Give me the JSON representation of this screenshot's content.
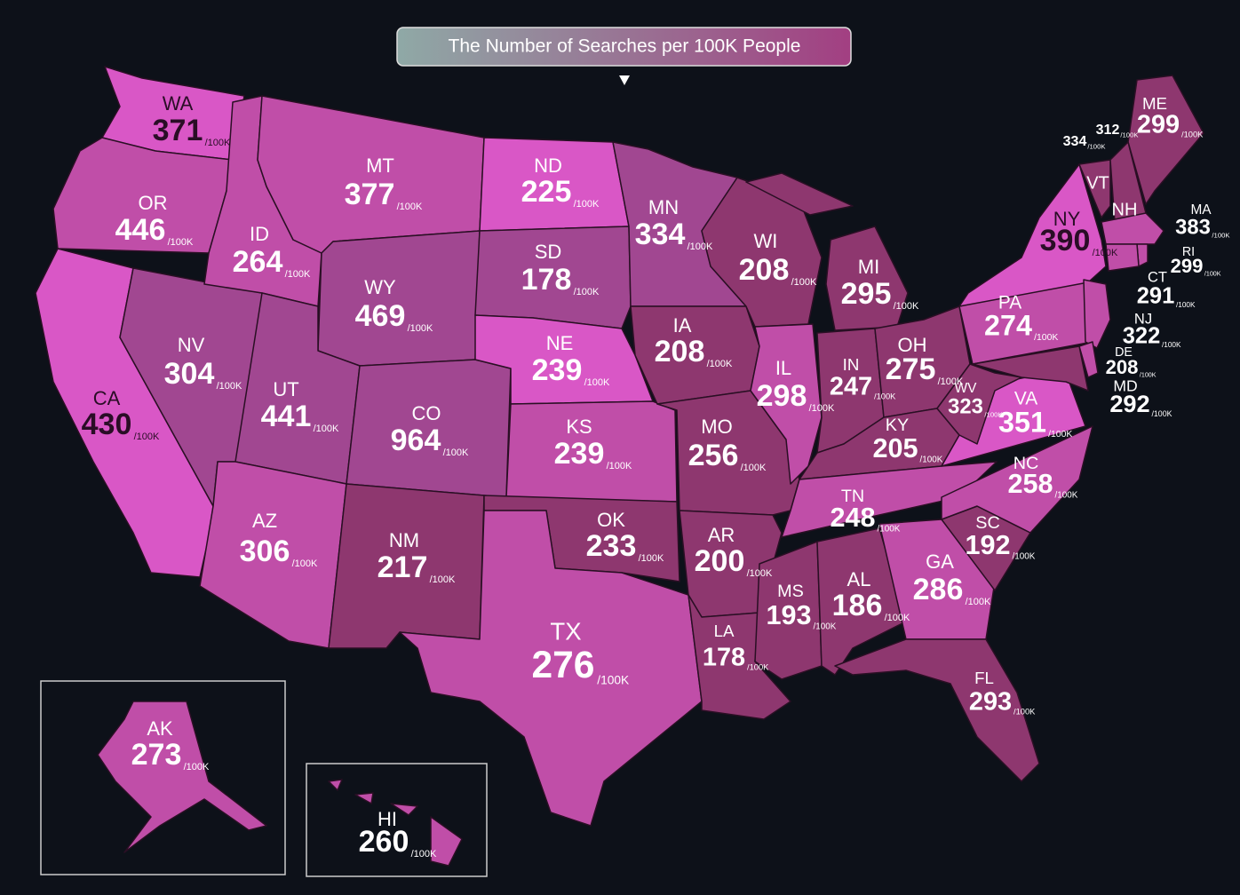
{
  "title": "The Number of Searches per 100K People",
  "unit": "/100K",
  "states": [
    {
      "abbr": "WA",
      "value": 371,
      "color": "#d957c6"
    },
    {
      "abbr": "OR",
      "value": 446,
      "color": "#c04ea8"
    },
    {
      "abbr": "CA",
      "value": 430,
      "color": "#d957c6"
    },
    {
      "abbr": "NV",
      "value": 304,
      "color": "#a14791"
    },
    {
      "abbr": "ID",
      "value": 264,
      "color": "#c04ea8"
    },
    {
      "abbr": "MT",
      "value": 377,
      "color": "#c04ea8"
    },
    {
      "abbr": "WY",
      "value": 469,
      "color": "#a14791"
    },
    {
      "abbr": "UT",
      "value": 441,
      "color": "#a14791"
    },
    {
      "abbr": "AZ",
      "value": 306,
      "color": "#c04ea8"
    },
    {
      "abbr": "CO",
      "value": 964,
      "color": "#a14791"
    },
    {
      "abbr": "NM",
      "value": 217,
      "color": "#8e376f"
    },
    {
      "abbr": "ND",
      "value": 225,
      "color": "#d957c6"
    },
    {
      "abbr": "SD",
      "value": 178,
      "color": "#a14791"
    },
    {
      "abbr": "NE",
      "value": 239,
      "color": "#d957c6"
    },
    {
      "abbr": "KS",
      "value": 239,
      "color": "#c04ea8"
    },
    {
      "abbr": "OK",
      "value": 233,
      "color": "#8e376f"
    },
    {
      "abbr": "TX",
      "value": 276,
      "color": "#c04ea8"
    },
    {
      "abbr": "MN",
      "value": 334,
      "color": "#a14791"
    },
    {
      "abbr": "IA",
      "value": 208,
      "color": "#8e376f"
    },
    {
      "abbr": "MO",
      "value": 256,
      "color": "#8e376f"
    },
    {
      "abbr": "AR",
      "value": 200,
      "color": "#8e376f"
    },
    {
      "abbr": "LA",
      "value": 178,
      "color": "#8e376f"
    },
    {
      "abbr": "WI",
      "value": 208,
      "color": "#8e376f"
    },
    {
      "abbr": "IL",
      "value": 298,
      "color": "#c04ea8"
    },
    {
      "abbr": "MI",
      "value": 295,
      "color": "#8e376f"
    },
    {
      "abbr": "IN",
      "value": 247,
      "color": "#8e376f"
    },
    {
      "abbr": "OH",
      "value": 275,
      "color": "#8e376f"
    },
    {
      "abbr": "KY",
      "value": 205,
      "color": "#8e376f"
    },
    {
      "abbr": "TN",
      "value": 248,
      "color": "#c04ea8"
    },
    {
      "abbr": "MS",
      "value": 193,
      "color": "#8e376f"
    },
    {
      "abbr": "AL",
      "value": 186,
      "color": "#8e376f"
    },
    {
      "abbr": "GA",
      "value": 286,
      "color": "#c04ea8"
    },
    {
      "abbr": "FL",
      "value": 293,
      "color": "#8e376f"
    },
    {
      "abbr": "SC",
      "value": 192,
      "color": "#8e376f"
    },
    {
      "abbr": "NC",
      "value": 258,
      "color": "#c04ea8"
    },
    {
      "abbr": "VA",
      "value": 351,
      "color": "#d957c6"
    },
    {
      "abbr": "WV",
      "value": 323,
      "color": "#8e376f"
    },
    {
      "abbr": "PA",
      "value": 274,
      "color": "#c04ea8"
    },
    {
      "abbr": "NY",
      "value": 390,
      "color": "#d957c6"
    },
    {
      "abbr": "ME",
      "value": 299,
      "color": "#8e376f"
    },
    {
      "abbr": "VT",
      "value": 334,
      "color": "#8e376f"
    },
    {
      "abbr": "NH",
      "value": 312,
      "color": "#8e376f"
    },
    {
      "abbr": "MA",
      "value": 383,
      "color": "#c04ea8"
    },
    {
      "abbr": "RI",
      "value": 299,
      "color": "#c04ea8"
    },
    {
      "abbr": "CT",
      "value": 291,
      "color": "#c04ea8"
    },
    {
      "abbr": "NJ",
      "value": 322,
      "color": "#c04ea8"
    },
    {
      "abbr": "DE",
      "value": 208,
      "color": "#c04ea8"
    },
    {
      "abbr": "MD",
      "value": 292,
      "color": "#8e376f"
    },
    {
      "abbr": "AK",
      "value": 273,
      "color": "#c04ea8"
    },
    {
      "abbr": "HI",
      "value": 260,
      "color": "#c04ea8"
    }
  ]
}
